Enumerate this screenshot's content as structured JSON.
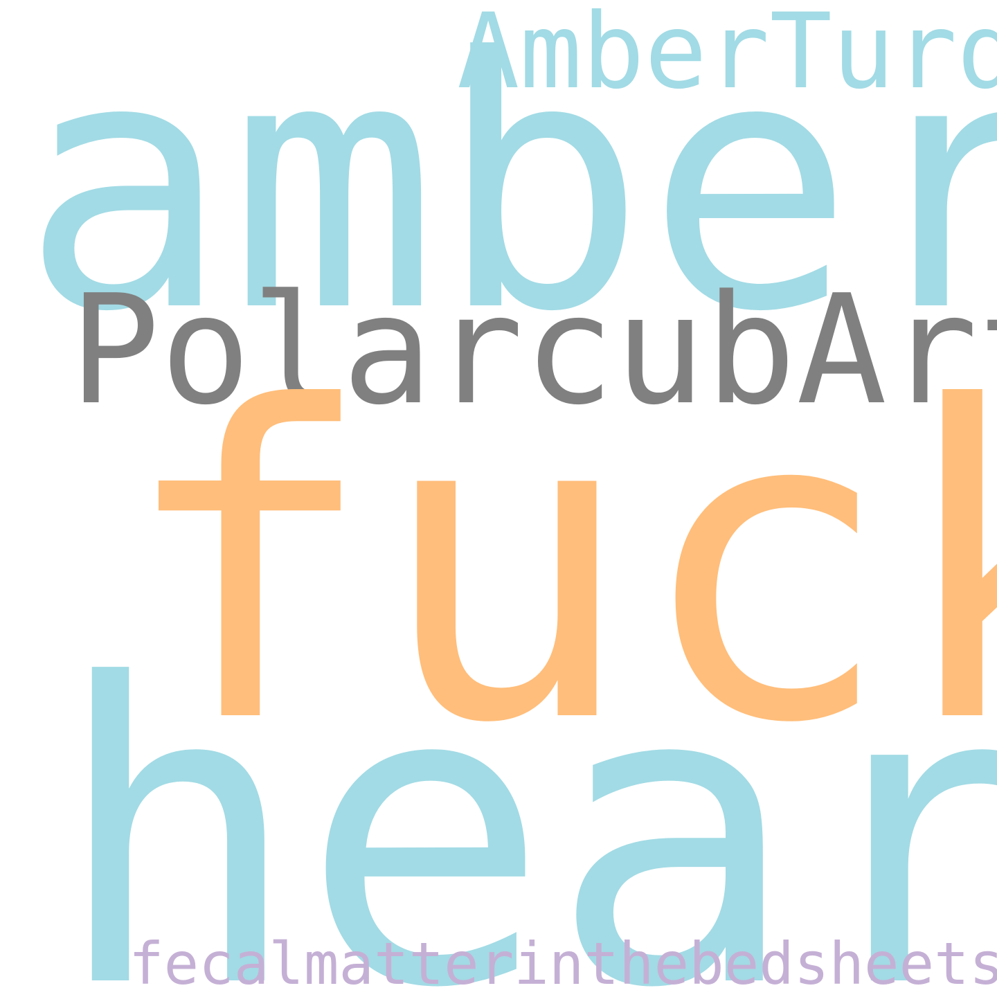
{
  "words": [
    {
      "text": "AmberTurd",
      "color": "#a2dbe5"
    },
    {
      "text": "amber",
      "color": "#a2dbe5"
    },
    {
      "text": "PolarcubArt",
      "color": "#808080"
    },
    {
      "text": "fuck",
      "color": "#ffbe7b"
    },
    {
      "text": "heard",
      "color": "#a2dbe5"
    },
    {
      "text": "fecalmatterinthebedsheets",
      "color": "#c5b0d5"
    }
  ]
}
